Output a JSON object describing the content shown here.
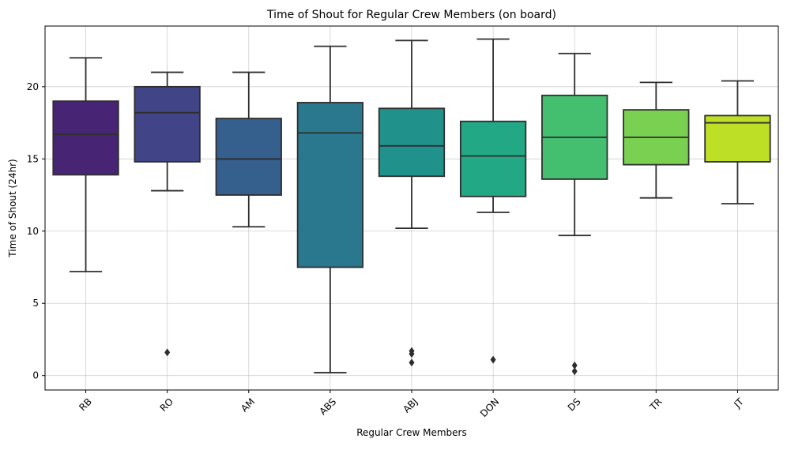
{
  "chart_data": {
    "type": "box",
    "title": "Time of Shout for Regular Crew Members (on board)",
    "xlabel": "Regular Crew Members",
    "ylabel": "Time of Shout (24hr)",
    "ylim": [
      -1,
      24.2
    ],
    "yticks": [
      0,
      5,
      10,
      15,
      20
    ],
    "grid": true,
    "categories": [
      "RB",
      "RO",
      "AM",
      "ABS",
      "ABJ",
      "DON",
      "DS",
      "TR",
      "JT"
    ],
    "boxes": [
      {
        "label": "RB",
        "whislo": 7.2,
        "q1": 13.9,
        "med": 16.7,
        "q3": 19.0,
        "whishi": 22.0,
        "fliers": [],
        "color": "#482475"
      },
      {
        "label": "RO",
        "whislo": 12.8,
        "q1": 14.8,
        "med": 18.2,
        "q3": 20.0,
        "whishi": 21.0,
        "fliers": [
          1.6
        ],
        "color": "#414487"
      },
      {
        "label": "AM",
        "whislo": 10.3,
        "q1": 12.5,
        "med": 15.0,
        "q3": 17.8,
        "whishi": 21.0,
        "fliers": [],
        "color": "#355f8d"
      },
      {
        "label": "ABS",
        "whislo": 0.2,
        "q1": 7.5,
        "med": 16.8,
        "q3": 18.9,
        "whishi": 22.8,
        "fliers": [],
        "color": "#2a788e"
      },
      {
        "label": "ABJ",
        "whislo": 10.2,
        "q1": 13.8,
        "med": 15.9,
        "q3": 18.5,
        "whishi": 23.2,
        "fliers": [
          1.7,
          1.5,
          0.9
        ],
        "color": "#21918c"
      },
      {
        "label": "DON",
        "whislo": 11.3,
        "q1": 12.4,
        "med": 15.2,
        "q3": 17.6,
        "whishi": 23.3,
        "fliers": [
          1.1
        ],
        "color": "#22a884"
      },
      {
        "label": "DS",
        "whislo": 9.7,
        "q1": 13.6,
        "med": 16.5,
        "q3": 19.4,
        "whishi": 22.3,
        "fliers": [
          0.7,
          0.3
        ],
        "color": "#44bf70"
      },
      {
        "label": "TR",
        "whislo": 12.3,
        "q1": 14.6,
        "med": 16.5,
        "q3": 18.4,
        "whishi": 20.3,
        "fliers": [],
        "color": "#7ad151"
      },
      {
        "label": "JT",
        "whislo": 11.9,
        "q1": 14.8,
        "med": 17.5,
        "q3": 18.0,
        "whishi": 20.4,
        "fliers": [],
        "color": "#bddf26"
      }
    ]
  }
}
